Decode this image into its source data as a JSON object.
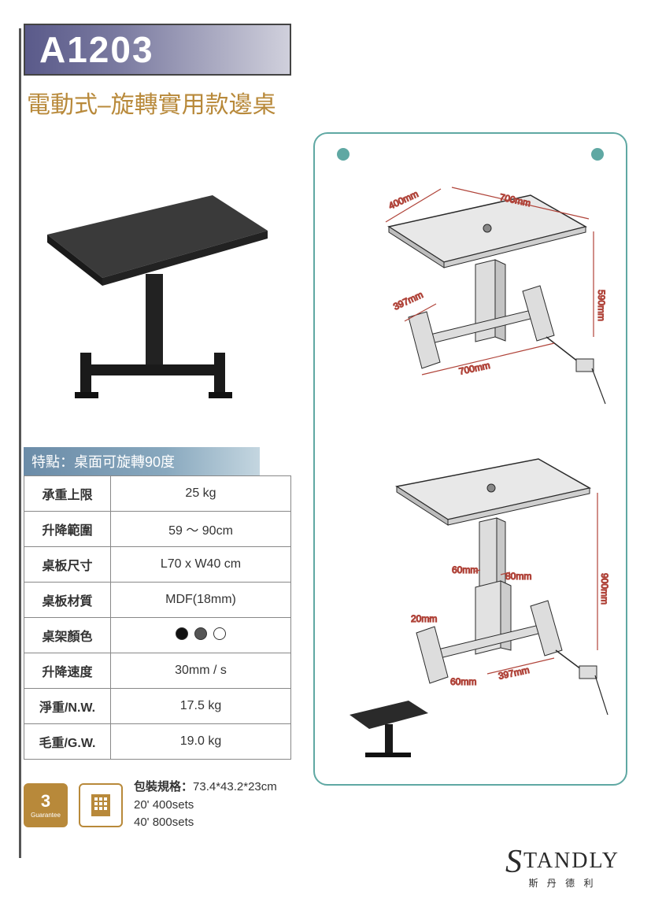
{
  "header": {
    "code": "A1203",
    "subtitle": "電動式–旋轉實用款邊桌"
  },
  "feature_bar": "特點：桌面可旋轉90度",
  "specs": [
    {
      "label": "承重上限",
      "value": "25 kg"
    },
    {
      "label": "升降範圍",
      "value": "59 ～ 90cm"
    },
    {
      "label": "桌板尺寸",
      "value": "L70 x W40 cm"
    },
    {
      "label": "桌板材質",
      "value": "MDF(18mm)"
    },
    {
      "label": "桌架顏色",
      "value": "__COLORS__"
    },
    {
      "label": "升降速度",
      "value": "30mm / s"
    },
    {
      "label": "淨重/N.W.",
      "value": "17.5 kg"
    },
    {
      "label": "毛重/G.W.",
      "value": "19.0 kg"
    }
  ],
  "spec_colors": [
    "#111111",
    "#555555",
    "#ffffff"
  ],
  "badge_guarantee": {
    "num": "3",
    "sub": "Guarantee"
  },
  "badge_factory": "工廠直營",
  "packing": {
    "label": "包裝規格：",
    "size": "73.4*43.2*23cm",
    "line1": "20' 400sets",
    "line2": "40' 800sets"
  },
  "brand": {
    "logo": "STANDLY",
    "sub": "斯 丹 德 利"
  },
  "diagram": {
    "top": {
      "w": "400mm",
      "l": "700mm",
      "base_w": "397mm",
      "base_l": "700mm",
      "h": "590mm"
    },
    "bottom": {
      "col1": "60mm",
      "col2": "80mm",
      "h": "900mm",
      "foot": "20mm",
      "base_h": "60mm",
      "base_w": "397mm"
    },
    "colors": {
      "line": "#2a2a2a",
      "dim": "#b0443a",
      "fill_top": "#e4e4e4",
      "fill_side": "#cfcfcf"
    }
  }
}
